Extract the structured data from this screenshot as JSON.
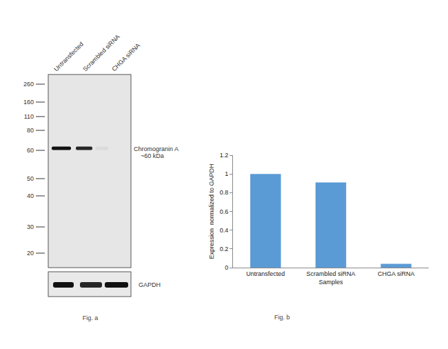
{
  "chart_data": {
    "type": "bar",
    "title": "Fig. b",
    "xlabel": "Samples",
    "ylabel": "Expression  normalized to GAPDH",
    "categories": [
      "Untransfected",
      "Scrambled siRNA",
      "CHGA siRNA"
    ],
    "values": [
      1.0,
      0.91,
      0.04
    ],
    "color": "#5b9bd5",
    "ylim": [
      0,
      1.2
    ],
    "yticks": [
      0,
      0.2,
      0.4,
      0.6,
      0.8,
      1,
      1.2
    ],
    "grid": false
  },
  "blot": {
    "caption": "Fig. a",
    "lanes": [
      "Untransfected",
      "Scrambled siRNA",
      "CHGA siRNA"
    ],
    "markers_kda": [
      260,
      160,
      110,
      80,
      60,
      50,
      40,
      30,
      20
    ],
    "target": {
      "name": "Chromogranin A",
      "size": "~60 kDa",
      "intensity": [
        1,
        0.9,
        0.05
      ]
    },
    "loading_control": {
      "name": "GAPDH",
      "intensity": [
        1,
        0.9,
        1
      ]
    }
  }
}
